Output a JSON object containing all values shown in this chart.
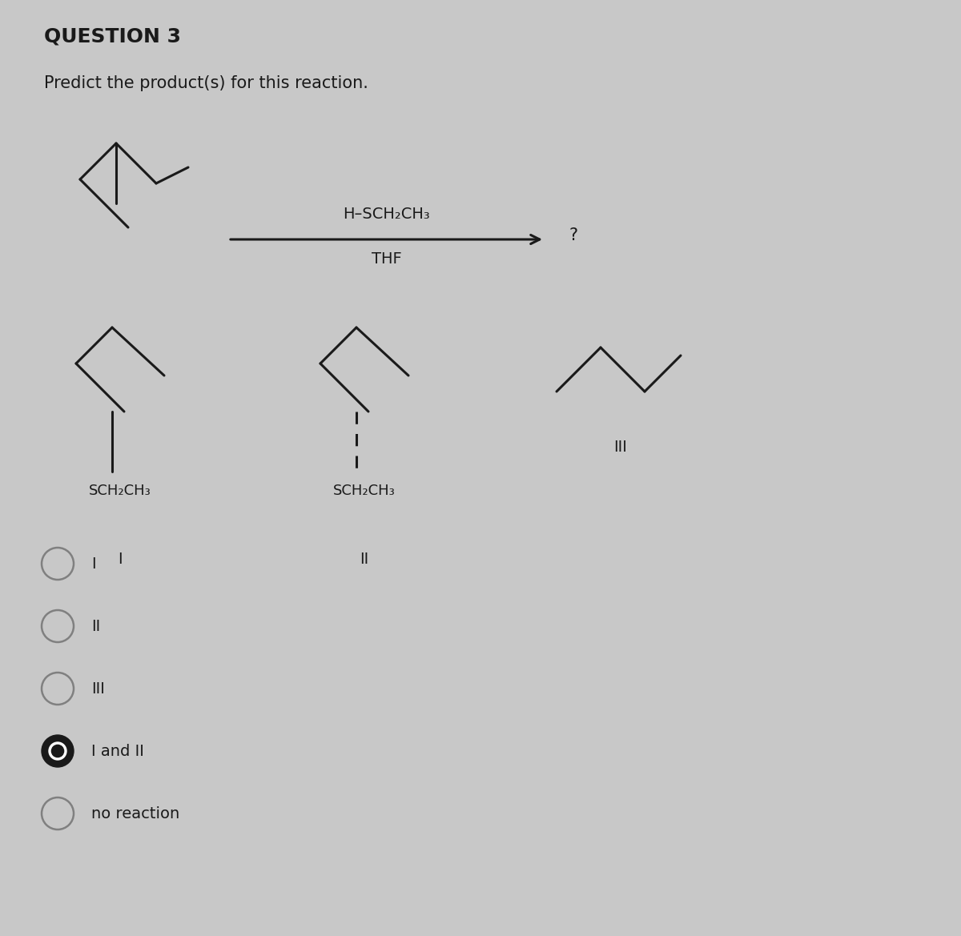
{
  "title": "QUESTION 3",
  "subtitle": "Predict the product(s) for this reaction.",
  "background_color": "#c8c8c8",
  "text_color": "#1a1a1a",
  "reagent_line": "H–SCH₂CH₃",
  "solvent_line": "THF",
  "question_mark": "?",
  "answer_choices": [
    "I",
    "II",
    "III",
    "I and II",
    "no reaction"
  ],
  "selected_answer": "I and II",
  "label_I_sub": "SCH₂CH₃",
  "label_II_sub": "SCH₂CH₃",
  "fig_width": 12.0,
  "fig_height": 11.69,
  "dpi": 100
}
